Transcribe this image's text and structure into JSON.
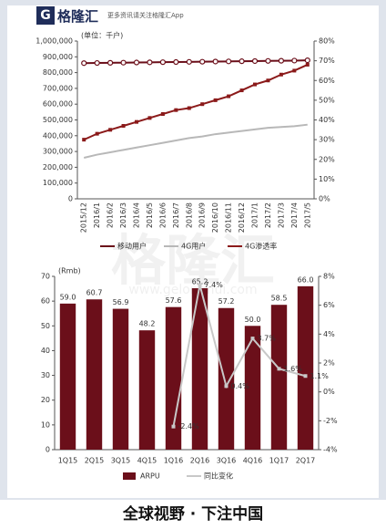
{
  "header": {
    "logo_mark": "G",
    "logo": "格隆汇",
    "tagline": "更多资讯请关注格隆汇App"
  },
  "watermark": {
    "brand": "格隆汇",
    "url": "www.gelonghui.com"
  },
  "footer": "全球视野 · 下注中国",
  "chart_data": [
    {
      "type": "line",
      "unit_label": "(单位：千户)",
      "categories": [
        "2015/12",
        "2016/1",
        "2016/2",
        "2016/3",
        "2016/4",
        "2016/5",
        "2016/6",
        "2016/7",
        "2016/8",
        "2016/9",
        "2016/10",
        "2016/11",
        "2016/12",
        "2017/1",
        "2017/2",
        "2017/3",
        "2017/4",
        "2017/5"
      ],
      "series": [
        {
          "name": "移动用户",
          "color": "#6b0f1a",
          "marker": "circle",
          "values": [
            860000,
            861000,
            862000,
            863000,
            864000,
            865000,
            866000,
            867000,
            868000,
            869000,
            870000,
            871000,
            872000,
            873000,
            874000,
            875000,
            876000,
            878000
          ]
        },
        {
          "name": "4G用户",
          "color": "#b8b8b8",
          "values": [
            260000,
            280000,
            295000,
            310000,
            325000,
            340000,
            355000,
            370000,
            385000,
            395000,
            410000,
            420000,
            430000,
            440000,
            450000,
            455000,
            460000,
            470000
          ]
        },
        {
          "name": "4G渗透率",
          "color": "#8b1a1a",
          "marker": "square",
          "axis": "y2",
          "values": [
            30,
            33,
            35,
            37,
            39,
            41,
            43,
            45,
            46,
            48,
            50,
            52,
            55,
            58,
            60,
            63,
            65,
            68
          ]
        }
      ],
      "ylim": [
        0,
        1000000
      ],
      "yticks": [
        0,
        {
          "value": 100000,
          "label": "100,000"
        },
        {
          "value": 200000,
          "label": "200,000"
        },
        {
          "value": 300000,
          "label": "300,000"
        },
        {
          "value": 400000,
          "label": "400,000"
        },
        {
          "value": 500000,
          "label": "500,000"
        },
        {
          "value": 600000,
          "label": "600,000"
        },
        {
          "value": 700000,
          "label": "700,000"
        },
        {
          "value": 800000,
          "label": "800,000"
        },
        {
          "value": 900000,
          "label": "900,000"
        },
        {
          "value": 1000000,
          "label": "1,000,000"
        }
      ],
      "y2lim": [
        0,
        80
      ],
      "y2ticks": [
        {
          "value": 0,
          "label": "0%"
        },
        {
          "value": 10,
          "label": "10%"
        },
        {
          "value": 20,
          "label": "20%"
        },
        {
          "value": 30,
          "label": "30%"
        },
        {
          "value": 40,
          "label": "40%"
        },
        {
          "value": 50,
          "label": "50%"
        },
        {
          "value": 60,
          "label": "60%"
        },
        {
          "value": 70,
          "label": "70%"
        },
        {
          "value": 80,
          "label": "80%"
        }
      ],
      "x_label_rotation": 90
    },
    {
      "type": "bar",
      "unit_label": "(Rmb)",
      "categories": [
        "1Q15",
        "2Q15",
        "3Q15",
        "4Q15",
        "1Q16",
        "2Q16",
        "3Q16",
        "4Q16",
        "1Q17",
        "2Q17"
      ],
      "series": [
        {
          "name": "ARPU",
          "type": "bar",
          "color": "#6b0f1a",
          "values": [
            59.0,
            60.7,
            56.9,
            48.2,
            57.6,
            65.2,
            57.2,
            50.0,
            58.5,
            66.0
          ],
          "value_labels": [
            "59.0",
            "60.7",
            "56.9",
            "48.2",
            "57.6",
            "65.2",
            "57.2",
            "50.0",
            "58.5",
            "66.0"
          ]
        },
        {
          "name": "同比变化",
          "type": "line",
          "color": "#c8c8c8",
          "axis": "y2",
          "marker": "square",
          "values": [
            null,
            null,
            null,
            null,
            -2.4,
            7.4,
            0.4,
            3.7,
            1.6,
            1.1
          ],
          "value_labels": [
            null,
            null,
            null,
            null,
            "-2.4%",
            "7.4%",
            "0.4%",
            "3.7%",
            "1.6%",
            "1.1%"
          ]
        }
      ],
      "ylim": [
        0,
        70
      ],
      "yticks": [
        0,
        10,
        20,
        30,
        40,
        50,
        60,
        70
      ],
      "y2lim": [
        -4,
        8
      ],
      "y2ticks": [
        {
          "value": -4,
          "label": "-4%"
        },
        {
          "value": -2,
          "label": "-2%"
        },
        {
          "value": 0,
          "label": "0%"
        },
        {
          "value": 2,
          "label": "2%"
        },
        {
          "value": 4,
          "label": "4%"
        },
        {
          "value": 6,
          "label": "6%"
        },
        {
          "value": 8,
          "label": "8%"
        }
      ]
    }
  ]
}
